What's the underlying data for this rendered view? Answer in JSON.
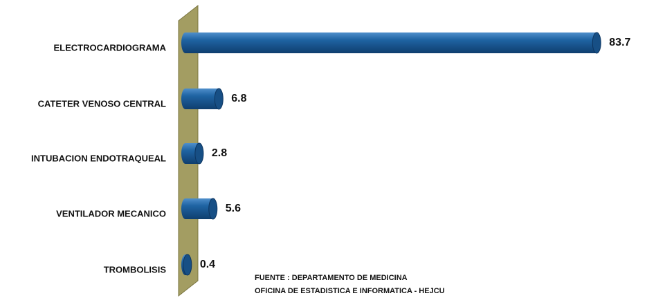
{
  "chart_data": {
    "type": "bar",
    "orientation": "horizontal",
    "categories": [
      "ELECTROCARDIOGRAMA",
      "CATETER VENOSO CENTRAL",
      "INTUBACION ENDOTRAQUEAL",
      "VENTILADOR MECANICO",
      "TROMBOLISIS"
    ],
    "values": [
      83.7,
      6.8,
      2.8,
      5.6,
      0.4
    ],
    "color": "#1f64a3",
    "xlim": [
      0,
      90
    ],
    "notes": [
      "FUENTE : DEPARTAMENTO DE MEDICINA",
      "OFICINA DE ESTADISTICA E INFORMATICA - HEJCU"
    ]
  }
}
